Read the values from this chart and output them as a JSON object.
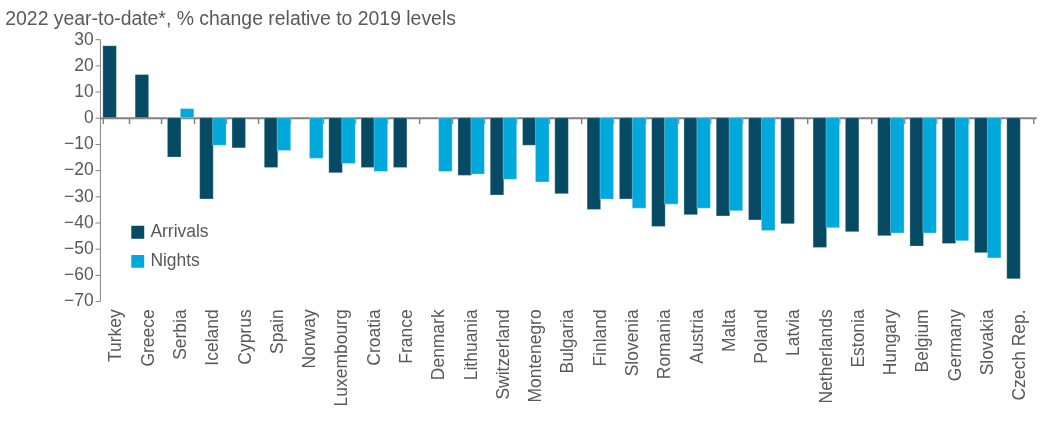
{
  "chart_data": {
    "type": "bar",
    "title": "2022 year-to-date*, % change relative to 2019 levels",
    "categories": [
      "Turkey",
      "Greece",
      "Serbia",
      "Iceland",
      "Cyprus",
      "Spain",
      "Norway",
      "Luxembourg",
      "Croatia",
      "France",
      "Denmark",
      "Lithuania",
      "Switzerland",
      "Montenegro",
      "Bulgaria",
      "Finland",
      "Slovenia",
      "Romania",
      "Austria",
      "Malta",
      "Poland",
      "Latvia",
      "Netherlands",
      "Estonia",
      "Hungary",
      "Belgium",
      "Germany",
      "Slovakia",
      "Czech Rep."
    ],
    "series": [
      {
        "name": "Arrivals",
        "color": "#074a63",
        "values": [
          27.5,
          16.5,
          -15,
          -31,
          -11.5,
          -19,
          null,
          -21,
          -19,
          -19,
          null,
          -22,
          -29.5,
          -10.5,
          -29,
          -35,
          -31,
          -41.5,
          -37,
          -37.5,
          -39,
          -40.5,
          -49.5,
          -43.5,
          -45,
          -49,
          -48,
          -51.5,
          -61.5
        ]
      },
      {
        "name": "Nights",
        "color": "#00a8db",
        "values": [
          null,
          null,
          3.5,
          -10.5,
          null,
          -12.5,
          -15.5,
          -17.5,
          -20.5,
          null,
          -20.5,
          -21.5,
          -23.5,
          -24.5,
          null,
          -31,
          -34.5,
          -33,
          -34.5,
          -35.5,
          -43,
          null,
          -42,
          null,
          -44,
          -44,
          -47,
          -53.5,
          null
        ]
      }
    ],
    "ylim": [
      -70,
      30
    ],
    "yticks": [
      -70,
      -60,
      -50,
      -40,
      -30,
      -20,
      -10,
      0,
      10,
      20,
      30
    ],
    "legend": "bottom left"
  }
}
